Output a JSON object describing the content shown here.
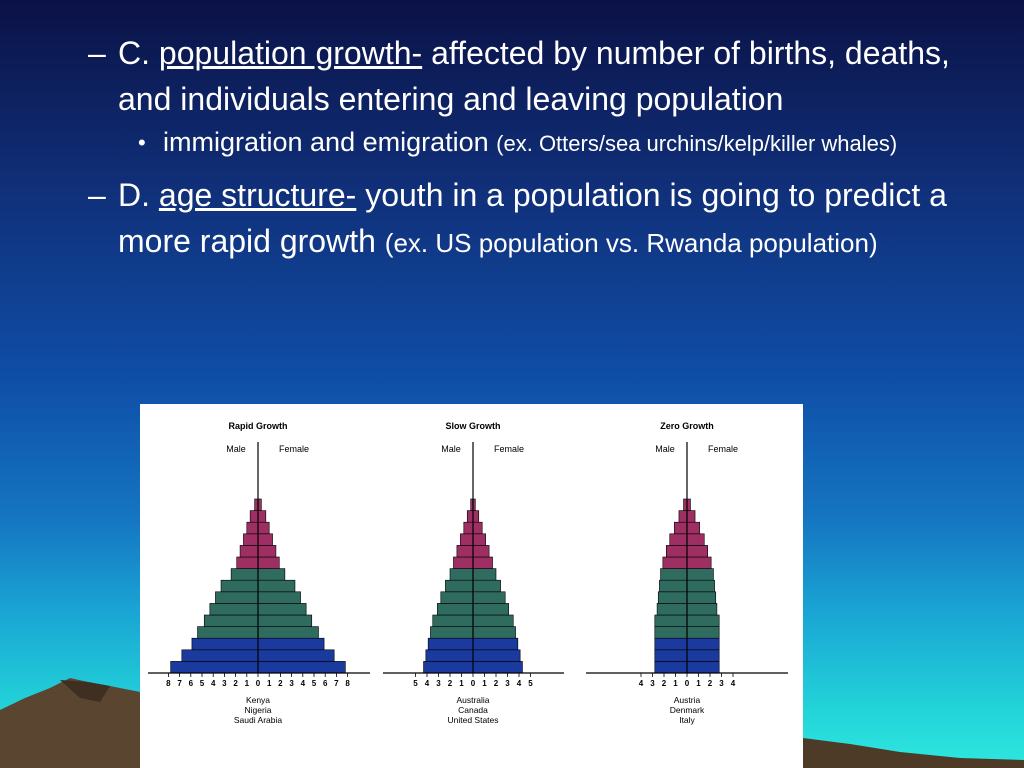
{
  "slide": {
    "c": {
      "marker": "–",
      "letter": "C.",
      "term": "population growth-",
      "rest": " affected by number of births, deaths, and individuals entering and leaving population"
    },
    "c_sub": {
      "marker": "•",
      "text": "immigration and emigration ",
      "example": "(ex. Otters/sea urchins/kelp/killer whales)"
    },
    "d": {
      "marker": "–",
      "letter": "D.",
      "term": "age structure-",
      "rest": " youth in a population is going to predict a more rapid growth ",
      "example": "(ex. US population vs. Rwanda population)"
    }
  },
  "chart_data": [
    {
      "type": "bar",
      "title": "Rapid Growth",
      "left_label": "Male",
      "right_label": "Female",
      "ticks": [
        "8",
        "7",
        "6",
        "5",
        "4",
        "3",
        "2",
        "1",
        "0",
        "1",
        "2",
        "3",
        "4",
        "5",
        "6",
        "7",
        "8"
      ],
      "countries": [
        "Kenya",
        "Nigeria",
        "Saudi Arabia"
      ],
      "colors": {
        "pre_reproductive": "#1a3a9e",
        "reproductive": "#2f6b5e",
        "post_reproductive": "#9e2f63"
      },
      "male": [
        7.8,
        6.8,
        5.9,
        5.4,
        4.8,
        4.3,
        3.8,
        3.3,
        2.4,
        1.9,
        1.6,
        1.3,
        1.0,
        0.7,
        0.3
      ],
      "female": [
        7.8,
        6.8,
        5.9,
        5.4,
        4.8,
        4.3,
        3.8,
        3.3,
        2.4,
        1.9,
        1.6,
        1.3,
        1.0,
        0.7,
        0.3
      ],
      "groups": [
        "pre",
        "pre",
        "pre",
        "rep",
        "rep",
        "rep",
        "rep",
        "rep",
        "rep",
        "post",
        "post",
        "post",
        "post",
        "post",
        "post"
      ],
      "xlim": [
        -8,
        8
      ]
    },
    {
      "type": "bar",
      "title": "Slow Growth",
      "left_label": "Male",
      "right_label": "Female",
      "ticks": [
        "5",
        "4",
        "3",
        "2",
        "1",
        "0",
        "1",
        "2",
        "3",
        "4",
        "5"
      ],
      "countries": [
        "Australia",
        "Canada",
        "United States"
      ],
      "colors": {
        "pre_reproductive": "#1a3a9e",
        "reproductive": "#2f6b5e",
        "post_reproductive": "#9e2f63"
      },
      "male": [
        4.3,
        4.1,
        3.9,
        3.7,
        3.5,
        3.1,
        2.8,
        2.4,
        2.0,
        1.7,
        1.4,
        1.1,
        0.8,
        0.5,
        0.2
      ],
      "female": [
        4.3,
        4.1,
        3.9,
        3.7,
        3.5,
        3.1,
        2.8,
        2.4,
        2.0,
        1.7,
        1.4,
        1.1,
        0.8,
        0.5,
        0.2
      ],
      "groups": [
        "pre",
        "pre",
        "pre",
        "rep",
        "rep",
        "rep",
        "rep",
        "rep",
        "rep",
        "post",
        "post",
        "post",
        "post",
        "post",
        "post"
      ],
      "xlim": [
        -5,
        5
      ]
    },
    {
      "type": "bar",
      "title": "Zero Growth",
      "left_label": "Male",
      "right_label": "Female",
      "ticks": [
        "4",
        "3",
        "2",
        "1",
        "0",
        "1",
        "2",
        "3",
        "4"
      ],
      "countries": [
        "Austria",
        "Denmark",
        "Italy"
      ],
      "colors": {
        "pre_reproductive": "#1a3a9e",
        "reproductive": "#2f6b5e",
        "post_reproductive": "#9e2f63"
      },
      "male": [
        2.8,
        2.8,
        2.8,
        2.8,
        2.8,
        2.6,
        2.5,
        2.4,
        2.3,
        2.1,
        1.8,
        1.5,
        1.1,
        0.7,
        0.3
      ],
      "female": [
        2.8,
        2.8,
        2.8,
        2.8,
        2.8,
        2.6,
        2.5,
        2.4,
        2.3,
        2.1,
        1.8,
        1.5,
        1.1,
        0.7,
        0.3
      ],
      "groups": [
        "pre",
        "pre",
        "pre",
        "rep",
        "rep",
        "rep",
        "rep",
        "rep",
        "rep",
        "post",
        "post",
        "post",
        "post",
        "post",
        "post"
      ],
      "xlim": [
        -4,
        4
      ]
    }
  ]
}
